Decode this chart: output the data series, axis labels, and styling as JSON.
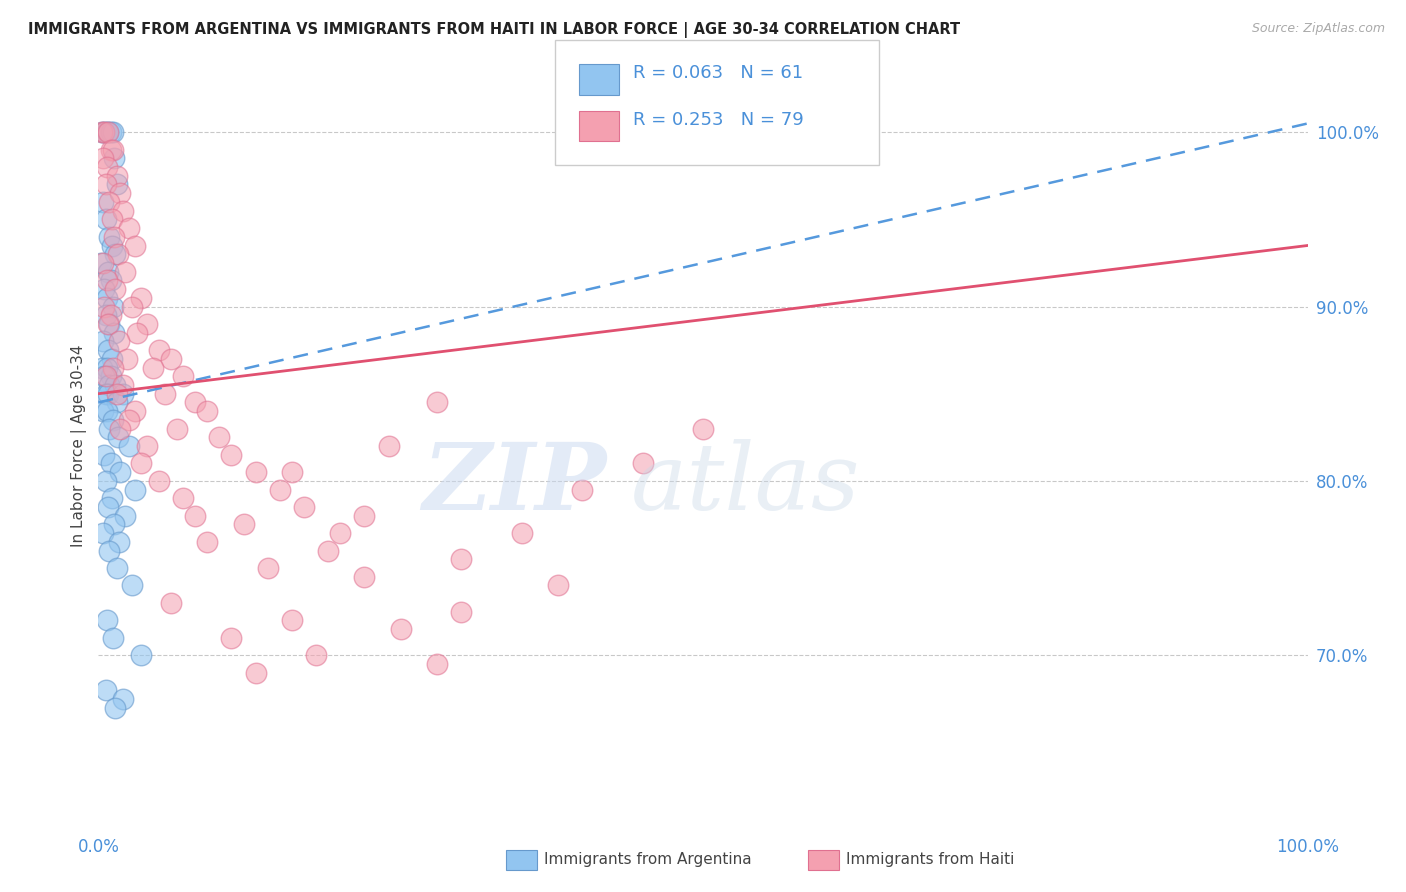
{
  "title": "IMMIGRANTS FROM ARGENTINA VS IMMIGRANTS FROM HAITI IN LABOR FORCE | AGE 30-34 CORRELATION CHART",
  "source": "Source: ZipAtlas.com",
  "ylabel": "In Labor Force | Age 30-34",
  "xlim": [
    0.0,
    100.0
  ],
  "ylim": [
    60.0,
    104.0
  ],
  "color_argentina": "#92C5F0",
  "color_haiti": "#F4A0B0",
  "color_edge_argentina": "#6699CC",
  "color_edge_haiti": "#E07090",
  "color_trend_argentina": "#5599DD",
  "color_trend_haiti": "#E05070",
  "argentina_x": [
    0.3,
    0.5,
    0.7,
    0.8,
    1.0,
    1.2,
    1.3,
    1.5,
    0.4,
    0.6,
    0.9,
    1.1,
    1.4,
    0.2,
    0.8,
    1.0,
    0.5,
    0.7,
    1.2,
    0.6,
    0.9,
    1.3,
    0.4,
    0.8,
    1.1,
    0.3,
    0.7,
    1.0,
    0.5,
    0.9,
    1.4,
    0.6,
    0.8,
    2.0,
    1.5,
    0.4,
    0.7,
    1.2,
    0.9,
    1.6,
    2.5,
    0.5,
    1.0,
    1.8,
    0.6,
    3.0,
    1.1,
    0.8,
    2.2,
    1.3,
    0.4,
    1.7,
    0.9,
    1.5,
    2.8,
    0.7,
    1.2,
    3.5,
    0.6,
    2.0,
    1.4
  ],
  "argentina_y": [
    100.0,
    100.0,
    100.0,
    100.0,
    100.0,
    100.0,
    98.5,
    97.0,
    96.0,
    95.0,
    94.0,
    93.5,
    93.0,
    92.5,
    92.0,
    91.5,
    91.0,
    90.5,
    90.0,
    89.5,
    89.0,
    88.5,
    88.0,
    87.5,
    87.0,
    86.5,
    86.5,
    86.0,
    86.0,
    85.5,
    85.5,
    85.0,
    85.0,
    85.0,
    84.5,
    84.0,
    84.0,
    83.5,
    83.0,
    82.5,
    82.0,
    81.5,
    81.0,
    80.5,
    80.0,
    79.5,
    79.0,
    78.5,
    78.0,
    77.5,
    77.0,
    76.5,
    76.0,
    75.0,
    74.0,
    72.0,
    71.0,
    70.0,
    68.0,
    67.5,
    67.0
  ],
  "haiti_x": [
    0.3,
    0.5,
    0.8,
    1.0,
    1.2,
    0.4,
    0.7,
    1.5,
    0.6,
    1.8,
    0.9,
    2.0,
    1.1,
    2.5,
    1.3,
    3.0,
    1.6,
    0.4,
    2.2,
    0.7,
    1.4,
    3.5,
    0.5,
    2.8,
    1.0,
    4.0,
    0.8,
    3.2,
    1.7,
    5.0,
    2.4,
    6.0,
    1.2,
    4.5,
    0.6,
    7.0,
    2.0,
    5.5,
    1.5,
    8.0,
    3.0,
    9.0,
    2.5,
    6.5,
    1.8,
    10.0,
    4.0,
    11.0,
    3.5,
    13.0,
    5.0,
    15.0,
    7.0,
    17.0,
    8.0,
    12.0,
    20.0,
    9.0,
    14.0,
    22.0,
    6.0,
    16.0,
    25.0,
    11.0,
    18.0,
    28.0,
    13.0,
    30.0,
    19.0,
    35.0,
    22.0,
    40.0,
    16.0,
    45.0,
    24.0,
    50.0,
    28.0,
    30.0,
    38.0
  ],
  "haiti_y": [
    100.0,
    100.0,
    100.0,
    99.0,
    99.0,
    98.5,
    98.0,
    97.5,
    97.0,
    96.5,
    96.0,
    95.5,
    95.0,
    94.5,
    94.0,
    93.5,
    93.0,
    92.5,
    92.0,
    91.5,
    91.0,
    90.5,
    90.0,
    90.0,
    89.5,
    89.0,
    89.0,
    88.5,
    88.0,
    87.5,
    87.0,
    87.0,
    86.5,
    86.5,
    86.0,
    86.0,
    85.5,
    85.0,
    85.0,
    84.5,
    84.0,
    84.0,
    83.5,
    83.0,
    83.0,
    82.5,
    82.0,
    81.5,
    81.0,
    80.5,
    80.0,
    79.5,
    79.0,
    78.5,
    78.0,
    77.5,
    77.0,
    76.5,
    75.0,
    74.5,
    73.0,
    72.0,
    71.5,
    71.0,
    70.0,
    69.5,
    69.0,
    75.5,
    76.0,
    77.0,
    78.0,
    79.5,
    80.5,
    81.0,
    82.0,
    83.0,
    84.5,
    72.5,
    74.0
  ],
  "trend_arg_x0": 0,
  "trend_arg_x1": 100,
  "trend_arg_y0": 84.5,
  "trend_arg_y1": 100.5,
  "trend_hai_x0": 0,
  "trend_hai_x1": 100,
  "trend_hai_y0": 85.0,
  "trend_hai_y1": 93.5,
  "y_ticks": [
    70,
    80,
    90,
    100
  ],
  "x_ticks": [
    0,
    100
  ],
  "watermark_zip": "ZIP",
  "watermark_atlas": "atlas",
  "legend_r1": "R = 0.063",
  "legend_n1": "N = 61",
  "legend_r2": "R = 0.253",
  "legend_n2": "N = 79"
}
